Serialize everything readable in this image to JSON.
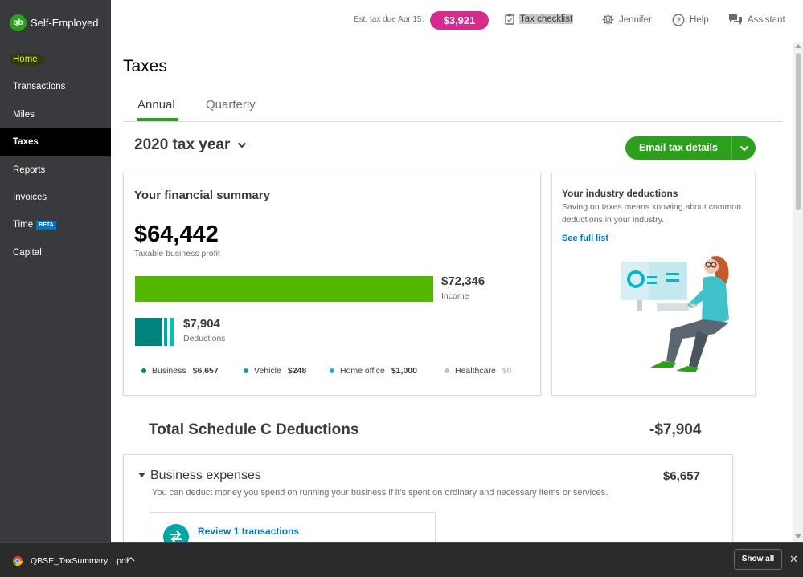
{
  "app": {
    "brand": "Self-Employed"
  },
  "sidebar": {
    "items": [
      {
        "label": "Home"
      },
      {
        "label": "Transactions"
      },
      {
        "label": "Miles"
      },
      {
        "label": "Taxes"
      },
      {
        "label": "Reports"
      },
      {
        "label": "Invoices"
      },
      {
        "label": "Time",
        "badge": "BETA"
      },
      {
        "label": "Capital"
      }
    ],
    "active": "Taxes"
  },
  "topbar": {
    "est_label": "Est. tax due Apr 15:",
    "est_amount": "$3,921",
    "checklist": "Tax checklist",
    "user": "Jennifer",
    "help": "Help",
    "assistant": "Assistant"
  },
  "page": {
    "title": "Taxes",
    "tabs": [
      {
        "label": "Annual"
      },
      {
        "label": "Quarterly"
      }
    ],
    "active_tab": "Annual",
    "tax_year": "2020 tax year",
    "email_button": "Email tax details"
  },
  "summary": {
    "title": "Your financial summary",
    "profit": "$64,442",
    "profit_label": "Taxable business profit",
    "income": "$72,346",
    "income_label": "Income",
    "deductions": "$7,904",
    "deductions_label": "Deductions",
    "breakdown": [
      {
        "label": "Business",
        "value": "$6,657",
        "color": "#00827d"
      },
      {
        "label": "Vehicle",
        "value": "$248",
        "color": "#00a6a4"
      },
      {
        "label": "Home office",
        "value": "$1,000",
        "color": "#00c1bf"
      },
      {
        "label": "Healthcare",
        "value": "$0",
        "color": "#c0c0c0"
      }
    ]
  },
  "industry": {
    "title": "Your industry deductions",
    "description": "Saving on taxes means knowing about common deductions in your industry.",
    "link": "See full list"
  },
  "schedule": {
    "title": "Total Schedule C Deductions",
    "total": "-$7,904"
  },
  "business_expenses": {
    "title": "Business expenses",
    "amount": "$6,657",
    "description": "You can deduct money you spend on running your business if it's spent on ordinary and necessary items or services.",
    "review_link": "Review 1 transactions"
  },
  "download_bar": {
    "file_name": "QBSE_TaxSummary....pdf",
    "show_all": "Show all",
    "close": "✕"
  },
  "colors": {
    "accent_green": "#2ca01c",
    "income_bar": "#53b700",
    "est_badge": "#d52b8c",
    "link_blue": "#0077c5",
    "sidebar_bg": "#393a3d"
  }
}
